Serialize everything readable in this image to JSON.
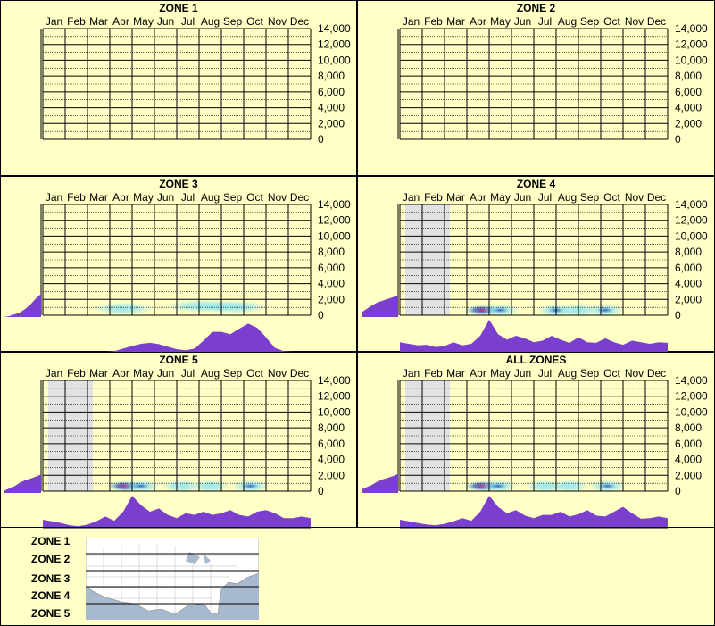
{
  "months": [
    "Jan",
    "Feb",
    "Mar",
    "Apr",
    "May",
    "Jun",
    "Jul",
    "Aug",
    "Sep",
    "Oct",
    "Nov",
    "Dec"
  ],
  "y_ticks": [
    "14,000",
    "12,000",
    "10,000",
    "8,000",
    "6,000",
    "4,000",
    "2,000",
    "0"
  ],
  "colors": {
    "background": "#ffffc6",
    "grid": "#000000",
    "density": "#7b3fd0",
    "heat_low": "#8fe6f0",
    "heat_mid": "#1a4fd0",
    "heat_hot": "#e0106a",
    "gray_band": "#e2e2e2"
  },
  "panels": [
    {
      "title": "ZONE 1"
    },
    {
      "title": "ZONE 2"
    },
    {
      "title": "ZONE 3"
    },
    {
      "title": "ZONE 4"
    },
    {
      "title": "ZONE 5"
    },
    {
      "title": "ALL ZONES"
    }
  ],
  "legend": {
    "zones": [
      "ZONE 1",
      "ZONE 2",
      "ZONE 3",
      "ZONE 4",
      "ZONE 5"
    ],
    "map_icon": "us-map"
  },
  "chart_data": [
    {
      "type": "heatmap",
      "title": "ZONE 1",
      "x_categories": [
        "Jan",
        "Feb",
        "Mar",
        "Apr",
        "May",
        "Jun",
        "Jul",
        "Aug",
        "Sep",
        "Oct",
        "Nov",
        "Dec"
      ],
      "ylim": [
        0,
        14000
      ],
      "month_density": [],
      "elevation_density": [],
      "gray_months": [],
      "hotspots": []
    },
    {
      "type": "heatmap",
      "title": "ZONE 2",
      "x_categories": [
        "Jan",
        "Feb",
        "Mar",
        "Apr",
        "May",
        "Jun",
        "Jul",
        "Aug",
        "Sep",
        "Oct",
        "Nov",
        "Dec"
      ],
      "ylim": [
        0,
        14000
      ],
      "month_density": [],
      "elevation_density": [],
      "gray_months": [],
      "hotspots": []
    },
    {
      "type": "heatmap",
      "title": "ZONE 3",
      "x_categories": [
        "Jan",
        "Feb",
        "Mar",
        "Apr",
        "May",
        "Jun",
        "Jul",
        "Aug",
        "Sep",
        "Oct",
        "Nov",
        "Dec"
      ],
      "ylim": [
        0,
        14000
      ],
      "month_density": [
        0,
        0,
        0,
        0,
        0,
        0,
        0,
        0,
        0.02,
        0.1,
        0.18,
        0.25,
        0.28,
        0.24,
        0.16,
        0.08,
        0.05,
        0.1,
        0.35,
        0.62,
        0.62,
        0.55,
        0.72,
        0.88,
        0.75,
        0.45,
        0.12,
        0.02,
        0,
        0,
        0
      ],
      "elevation_density": [
        0,
        0.05,
        0.12,
        0.2,
        0.35,
        0.55,
        0.8,
        1
      ],
      "gray_months": [],
      "hotspots": [
        {
          "month": 3.6,
          "elev": 500,
          "intensity": 0.35,
          "spread": 0.9
        },
        {
          "month": 7.2,
          "elev": 800,
          "intensity": 0.45,
          "spread": 1.2
        },
        {
          "month": 8.6,
          "elev": 700,
          "intensity": 0.5,
          "spread": 1.0
        }
      ]
    },
    {
      "type": "heatmap",
      "title": "ZONE 4",
      "x_categories": [
        "Jan",
        "Feb",
        "Mar",
        "Apr",
        "May",
        "Jun",
        "Jul",
        "Aug",
        "Sep",
        "Oct",
        "Nov",
        "Dec"
      ],
      "ylim": [
        0,
        14000
      ],
      "month_density": [
        0.3,
        0.25,
        0.2,
        0.22,
        0.15,
        0.18,
        0.3,
        0.2,
        0.25,
        0.5,
        1,
        0.55,
        0.38,
        0.5,
        0.42,
        0.3,
        0.35,
        0.5,
        0.38,
        0.28,
        0.45,
        0.3,
        0.28,
        0.42,
        0.3,
        0.22,
        0.35,
        0.3,
        0.25,
        0.3,
        0.28
      ],
      "elevation_density": [
        0.2,
        0.35,
        0.5,
        0.62,
        0.7,
        0.78,
        0.85,
        0.95
      ],
      "gray_months": [
        0,
        1
      ],
      "hotspots": [
        {
          "month": 3.7,
          "elev": 300,
          "intensity": 1,
          "spread": 0.5
        },
        {
          "month": 4.5,
          "elev": 300,
          "intensity": 0.6,
          "spread": 0.5
        },
        {
          "month": 7.0,
          "elev": 300,
          "intensity": 0.55,
          "spread": 0.5
        },
        {
          "month": 8.0,
          "elev": 300,
          "intensity": 0.5,
          "spread": 0.5
        },
        {
          "month": 9.2,
          "elev": 300,
          "intensity": 0.6,
          "spread": 0.5
        }
      ]
    },
    {
      "type": "heatmap",
      "title": "ZONE 5",
      "x_categories": [
        "Jan",
        "Feb",
        "Mar",
        "Apr",
        "May",
        "Jun",
        "Jul",
        "Aug",
        "Sep",
        "Oct",
        "Nov",
        "Dec"
      ],
      "ylim": [
        0,
        14000
      ],
      "month_density": [
        0.25,
        0.2,
        0.15,
        0.08,
        0.05,
        0.1,
        0.2,
        0.35,
        0.22,
        0.5,
        1,
        0.7,
        0.5,
        0.6,
        0.4,
        0.3,
        0.45,
        0.4,
        0.5,
        0.4,
        0.45,
        0.55,
        0.4,
        0.35,
        0.5,
        0.55,
        0.45,
        0.3,
        0.3,
        0.35,
        0.3
      ],
      "elevation_density": [
        0.1,
        0.2,
        0.3,
        0.45,
        0.55,
        0.62,
        0.7,
        0.8
      ],
      "gray_months": [
        0,
        1
      ],
      "hotspots": [
        {
          "month": 3.7,
          "elev": 300,
          "intensity": 1,
          "spread": 0.5
        },
        {
          "month": 4.4,
          "elev": 300,
          "intensity": 0.6,
          "spread": 0.5
        },
        {
          "month": 6.2,
          "elev": 300,
          "intensity": 0.45,
          "spread": 0.5
        },
        {
          "month": 7.5,
          "elev": 300,
          "intensity": 0.45,
          "spread": 0.5
        },
        {
          "month": 9.3,
          "elev": 300,
          "intensity": 0.6,
          "spread": 0.5
        }
      ]
    },
    {
      "type": "heatmap",
      "title": "ALL ZONES",
      "x_categories": [
        "Jan",
        "Feb",
        "Mar",
        "Apr",
        "May",
        "Jun",
        "Jul",
        "Aug",
        "Sep",
        "Oct",
        "Nov",
        "Dec"
      ],
      "ylim": [
        0,
        14000
      ],
      "month_density": [
        0.25,
        0.2,
        0.15,
        0.1,
        0.08,
        0.12,
        0.2,
        0.3,
        0.22,
        0.5,
        1,
        0.65,
        0.45,
        0.55,
        0.38,
        0.3,
        0.4,
        0.4,
        0.5,
        0.35,
        0.42,
        0.55,
        0.38,
        0.35,
        0.5,
        0.65,
        0.45,
        0.28,
        0.3,
        0.35,
        0.3
      ],
      "elevation_density": [
        0.15,
        0.25,
        0.35,
        0.48,
        0.58,
        0.65,
        0.72,
        0.82
      ],
      "gray_months": [
        0,
        1
      ],
      "hotspots": [
        {
          "month": 3.7,
          "elev": 300,
          "intensity": 1,
          "spread": 0.5
        },
        {
          "month": 4.4,
          "elev": 300,
          "intensity": 0.65,
          "spread": 0.5
        },
        {
          "month": 6.5,
          "elev": 300,
          "intensity": 0.45,
          "spread": 0.5
        },
        {
          "month": 7.6,
          "elev": 300,
          "intensity": 0.45,
          "spread": 0.5
        },
        {
          "month": 9.3,
          "elev": 300,
          "intensity": 0.6,
          "spread": 0.5
        }
      ]
    }
  ]
}
